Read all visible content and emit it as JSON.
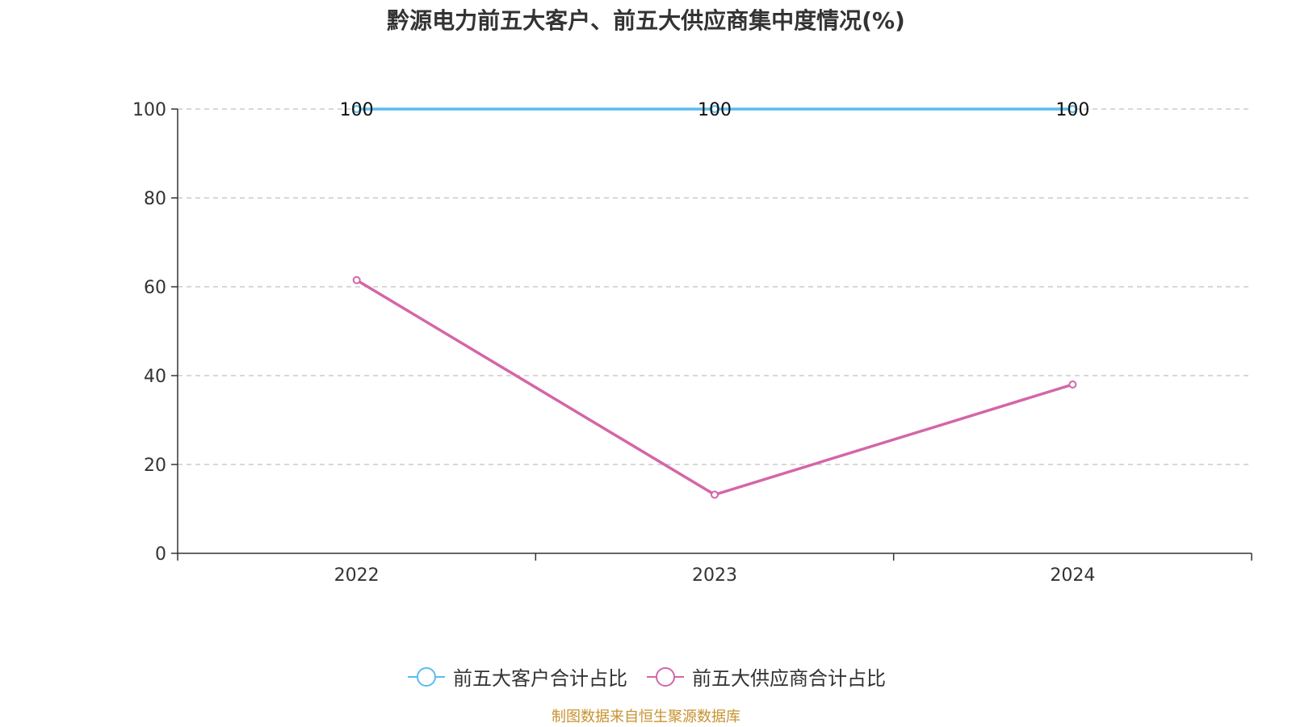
{
  "chart_data": {
    "type": "line",
    "title": "黔源电力前五大客户、前五大供应商集中度情况(%)",
    "categories": [
      "2022",
      "2023",
      "2024"
    ],
    "series": [
      {
        "name": "前五大客户合计占比",
        "values": [
          100,
          100,
          100
        ],
        "color": "#5bbcf0",
        "show_labels": true
      },
      {
        "name": "前五大供应商合计占比",
        "values": [
          61.5,
          13.2,
          38
        ],
        "color": "#d466a8",
        "show_labels": false
      }
    ],
    "ylim": [
      0,
      100
    ],
    "yticks": [
      0,
      20,
      40,
      60,
      80,
      100
    ],
    "grid": true,
    "legend": "bottom-center",
    "xlabel": "",
    "ylabel": ""
  },
  "source": "制图数据来自恒生聚源数据库"
}
